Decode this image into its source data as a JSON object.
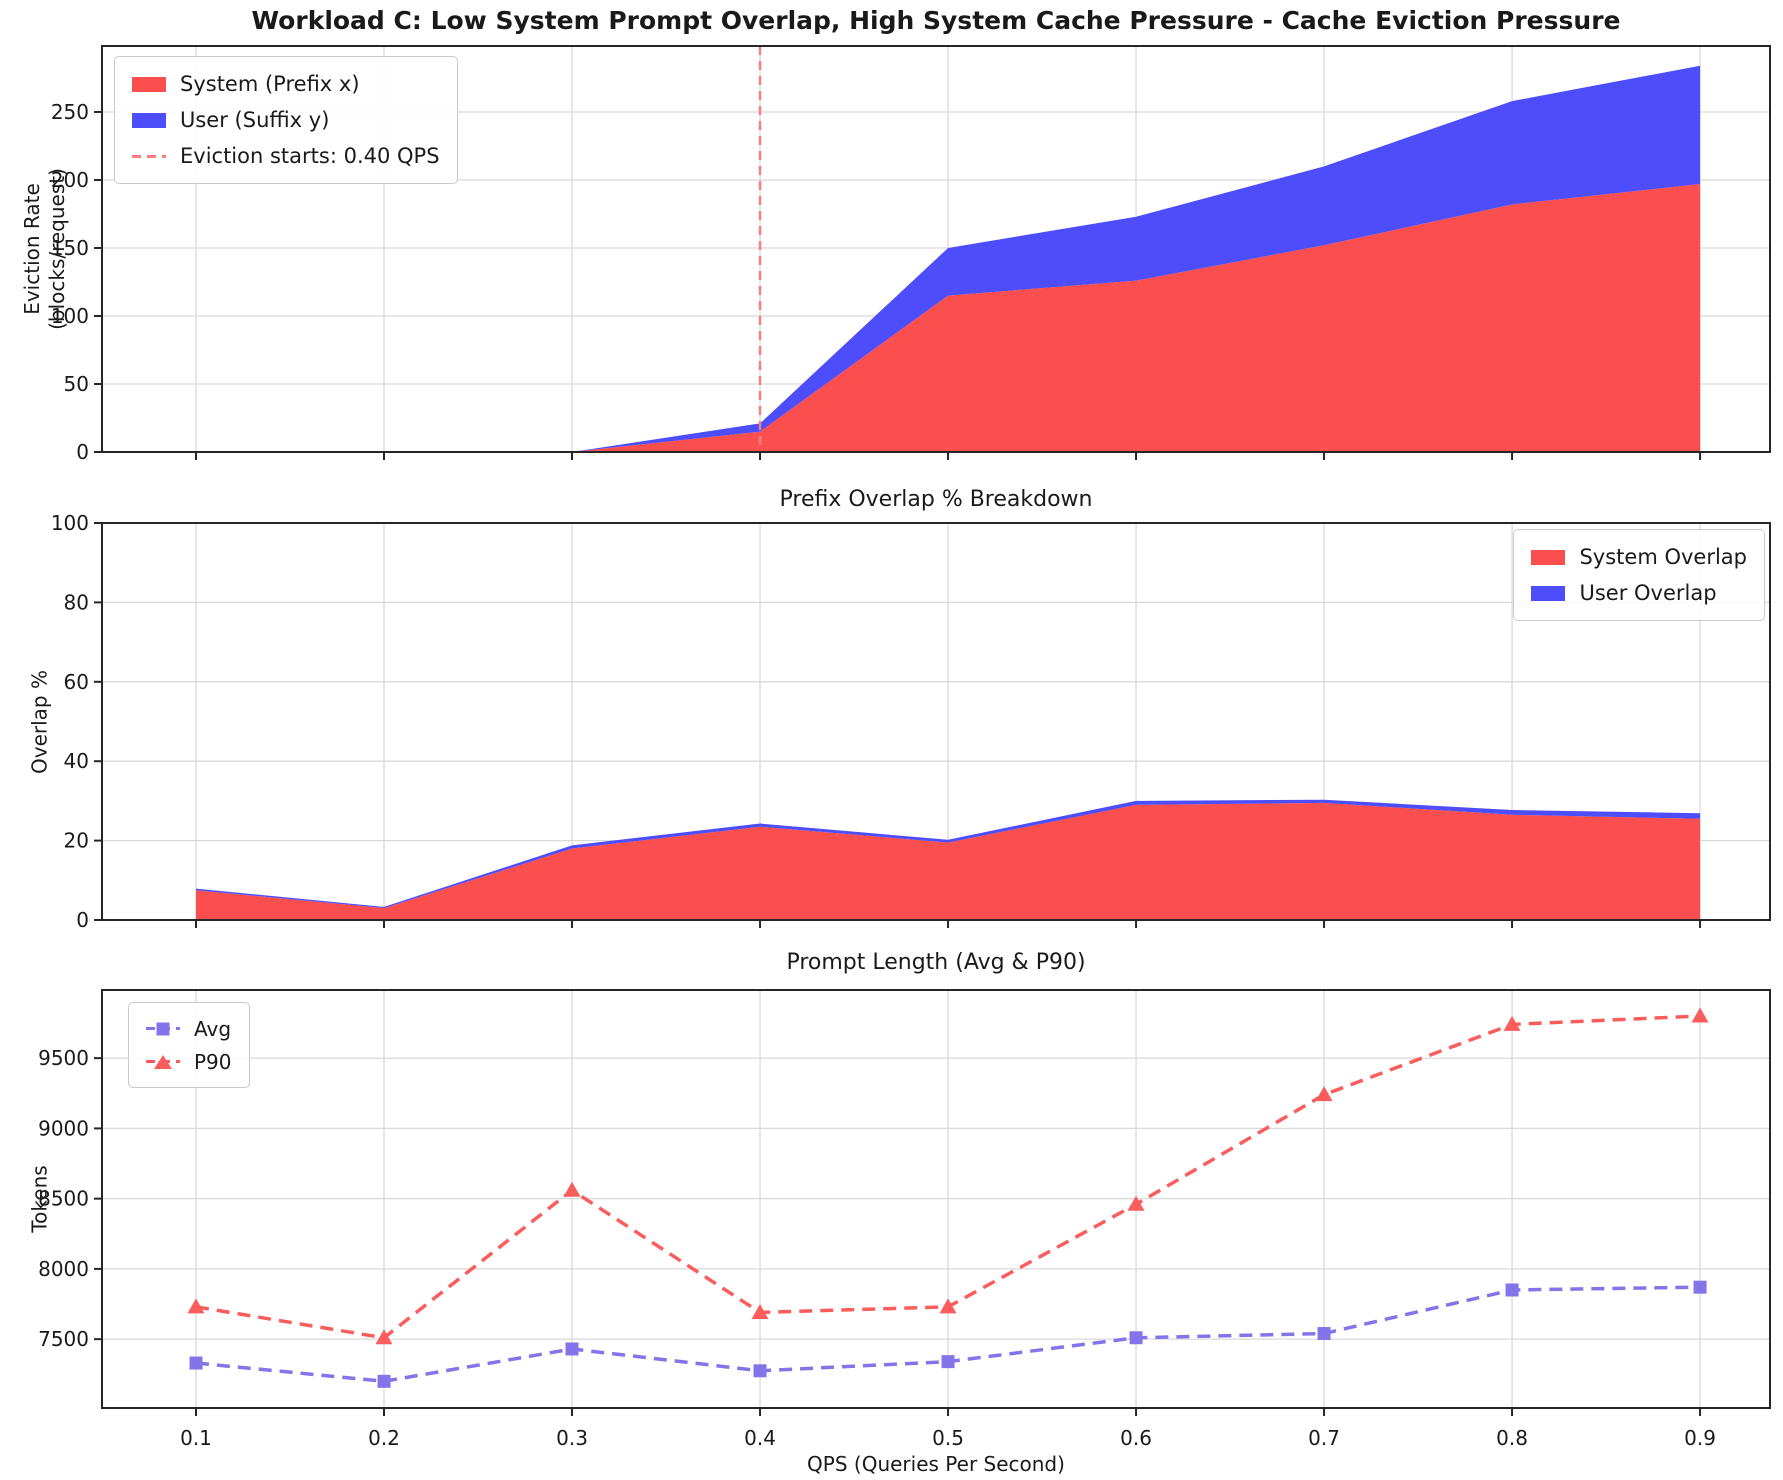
{
  "figure_title": "Workload C: Low System Prompt Overlap, High System Cache Pressure - Cache Eviction Pressure",
  "xlabel": "QPS (Queries Per Second)",
  "x_ticks": [
    "0.1",
    "0.2",
    "0.3",
    "0.4",
    "0.5",
    "0.6",
    "0.7",
    "0.8",
    "0.9"
  ],
  "chart_data": [
    {
      "type": "area",
      "stacked": true,
      "ylabel_lines": [
        "Eviction Rate",
        "(blocks/request)"
      ],
      "x": [
        0.1,
        0.2,
        0.3,
        0.4,
        0.5,
        0.6,
        0.7,
        0.8,
        0.9
      ],
      "series": [
        {
          "name": "System (Prefix x)",
          "color": "#fb4e4e",
          "values": [
            0,
            0,
            0,
            15,
            115,
            126,
            152,
            182,
            197
          ]
        },
        {
          "name": "User (Suffix y)",
          "color": "#4d4dfb",
          "values": [
            0,
            0,
            0,
            6,
            35,
            47,
            58,
            76,
            87
          ]
        }
      ],
      "y_ticks": [
        0,
        50,
        100,
        150,
        200,
        250
      ],
      "ylim": [
        0,
        298.5
      ],
      "vline": {
        "x": 0.4,
        "label": "Eviction starts: 0.40 QPS",
        "color": "#f97f7b"
      },
      "legend_position": "top-left",
      "grid": true
    },
    {
      "type": "area",
      "stacked": true,
      "title": "Prefix Overlap % Breakdown",
      "ylabel": "Overlap %",
      "x": [
        0.1,
        0.2,
        0.3,
        0.4,
        0.5,
        0.6,
        0.7,
        0.8,
        0.9
      ],
      "series": [
        {
          "name": "System Overlap",
          "color": "#fb4e4e",
          "values": [
            7.5,
            3,
            18,
            23.5,
            19.5,
            29,
            29.5,
            26.5,
            25.5
          ]
        },
        {
          "name": "User Overlap",
          "color": "#4d4dfb",
          "values": [
            0.4,
            0.3,
            0.8,
            0.8,
            0.7,
            1,
            0.8,
            1.2,
            1.4
          ]
        }
      ],
      "y_ticks": [
        0,
        20,
        40,
        60,
        80,
        100
      ],
      "ylim": [
        0,
        100
      ],
      "legend_position": "top-right",
      "grid": true
    },
    {
      "type": "line",
      "title": "Prompt Length (Avg & P90)",
      "ylabel": "Tokens",
      "x": [
        0.1,
        0.2,
        0.3,
        0.4,
        0.5,
        0.6,
        0.7,
        0.8,
        0.9
      ],
      "series": [
        {
          "name": "Avg",
          "color": "#8474ea",
          "marker": "square",
          "values": [
            7330,
            7200,
            7430,
            7275,
            7340,
            7510,
            7540,
            7850,
            7870
          ]
        },
        {
          "name": "P90",
          "color": "#fb5d5d",
          "marker": "triangle",
          "values": [
            7730,
            7510,
            8560,
            7690,
            7730,
            8460,
            9240,
            9740,
            9800
          ]
        }
      ],
      "y_ticks": [
        7500,
        8000,
        8500,
        9000,
        9500
      ],
      "ylim": [
        7010,
        9985
      ],
      "legend_position": "top-left",
      "grid": true
    }
  ]
}
